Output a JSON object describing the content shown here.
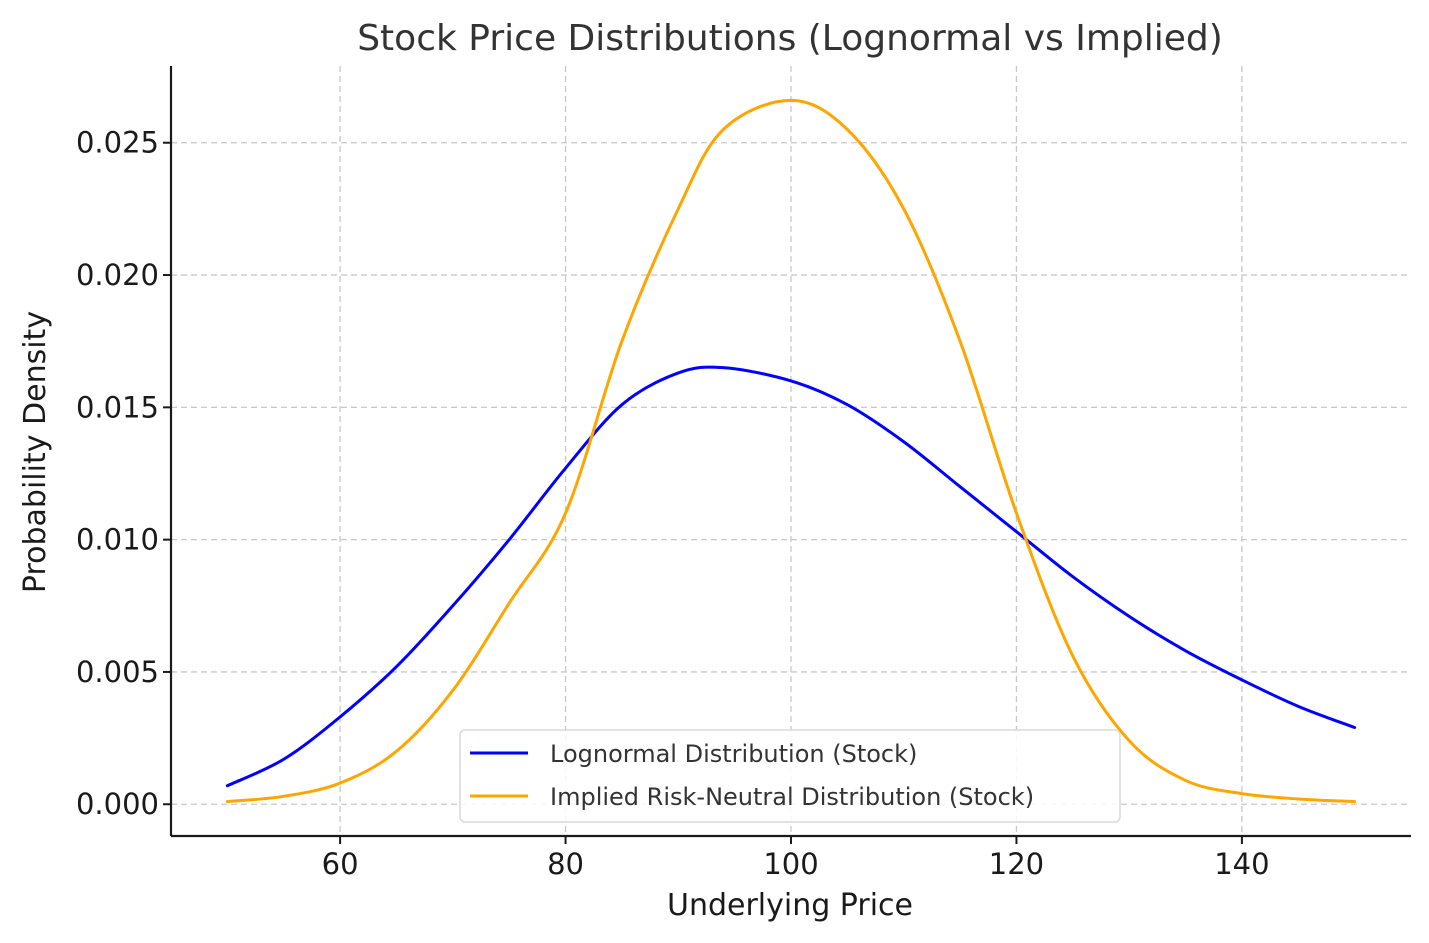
{
  "chart_data": {
    "type": "line",
    "title": "Stock Price Distributions (Lognormal vs Implied)",
    "xlabel": "Underlying Price",
    "ylabel": "Probability Density",
    "xlim": [
      45,
      155
    ],
    "ylim": [
      -0.0012,
      0.0279
    ],
    "xticks": [
      60,
      80,
      100,
      120,
      140
    ],
    "xtick_labels": [
      "60",
      "80",
      "100",
      "120",
      "140"
    ],
    "yticks": [
      0.0,
      0.005,
      0.01,
      0.015,
      0.02,
      0.025
    ],
    "ytick_labels": [
      "0.000",
      "0.005",
      "0.010",
      "0.015",
      "0.020",
      "0.025"
    ],
    "grid": true,
    "legend_position": "bottom-center",
    "x": [
      50,
      55,
      60,
      65,
      70,
      75,
      80,
      85,
      90,
      94,
      100,
      105,
      110,
      115,
      120,
      125,
      130,
      135,
      140,
      145,
      150
    ],
    "series": [
      {
        "name": "Lognormal Distribution (Stock)",
        "color": "#0000ff",
        "values": [
          0.0007,
          0.0017,
          0.0033,
          0.0052,
          0.0075,
          0.01,
          0.0127,
          0.0151,
          0.0163,
          0.0165,
          0.016,
          0.0151,
          0.0137,
          0.012,
          0.0103,
          0.0086,
          0.0071,
          0.0058,
          0.0047,
          0.0037,
          0.0029
        ]
      },
      {
        "name": "Implied Risk-Neutral Distribution (Stock)",
        "color": "#ffa500",
        "values": [
          0.0001,
          0.0003,
          0.0008,
          0.002,
          0.0043,
          0.0076,
          0.011,
          0.0175,
          0.0225,
          0.0255,
          0.0266,
          0.0255,
          0.0225,
          0.0175,
          0.011,
          0.0056,
          0.0024,
          0.0009,
          0.0004,
          0.0002,
          0.0001
        ]
      }
    ]
  }
}
